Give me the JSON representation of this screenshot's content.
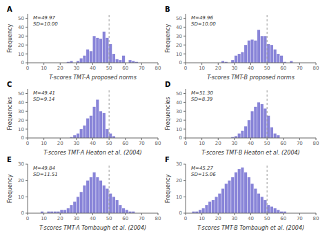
{
  "chart_data": [
    {
      "type": "bar",
      "title": "A",
      "xlabel": "T-scores TMT-A proposed norms",
      "ylabel": "Frequency",
      "annotation": "M=49.97\nSD=10.00",
      "reference_line_x": 50,
      "x": [
        23,
        25,
        27,
        29,
        31,
        33,
        35,
        37,
        39,
        41,
        43,
        45,
        47,
        49,
        51,
        53,
        55,
        57,
        59,
        61,
        63,
        65,
        67,
        69,
        71,
        73
      ],
      "values": [
        0,
        1,
        2,
        0,
        2,
        5,
        8,
        15,
        13,
        30,
        28,
        27,
        35,
        28,
        21,
        10,
        4,
        3,
        8,
        0,
        3,
        2,
        1,
        0,
        0,
        0
      ],
      "xlim": [
        0,
        80
      ],
      "xticks": [
        0,
        10,
        20,
        30,
        40,
        50,
        60,
        70,
        80
      ],
      "ylim": [
        0,
        55
      ],
      "yticks": [
        0,
        10,
        20,
        30,
        40,
        50
      ],
      "grid": false
    },
    {
      "type": "bar",
      "title": "B",
      "xlabel": "T-scores TMT-B proposed norms",
      "ylabel": "Frequency",
      "annotation": "M=49.96\nSD=10.00",
      "reference_line_x": 50,
      "x": [
        23,
        25,
        27,
        29,
        31,
        33,
        35,
        37,
        39,
        41,
        43,
        45,
        47,
        49,
        51,
        53,
        55,
        57,
        59,
        61,
        63,
        65,
        67,
        69,
        71,
        73,
        75
      ],
      "values": [
        2,
        1,
        0,
        3,
        8,
        10,
        12,
        20,
        25,
        26,
        25,
        37,
        30,
        30,
        21,
        20,
        15,
        10,
        8,
        1,
        0,
        2,
        0,
        0,
        0,
        0,
        0
      ],
      "xlim": [
        0,
        80
      ],
      "xticks": [
        0,
        10,
        20,
        30,
        40,
        50,
        60,
        70,
        80
      ],
      "ylim": [
        0,
        55
      ],
      "yticks": [
        0,
        10,
        20,
        30,
        40,
        50
      ],
      "grid": false
    },
    {
      "type": "bar",
      "title": "C",
      "xlabel": "T-scores TMT-A Heaton et al. (2004)",
      "ylabel": "Frequencies",
      "annotation": "M=49.41\nSD=9.14",
      "reference_line_x": 50,
      "x": [
        27,
        29,
        31,
        33,
        35,
        37,
        39,
        41,
        43,
        45,
        47,
        49,
        51,
        53,
        55,
        57,
        59,
        61,
        63
      ],
      "values": [
        1,
        3,
        5,
        10,
        14,
        22,
        25,
        35,
        43,
        30,
        28,
        10,
        5,
        2,
        0,
        0,
        0,
        0,
        0
      ],
      "xlim": [
        0,
        80
      ],
      "xticks": [
        0,
        10,
        20,
        30,
        40,
        50,
        60,
        70,
        80
      ],
      "ylim": [
        0,
        55
      ],
      "yticks": [
        0,
        10,
        20,
        30,
        40,
        50
      ],
      "grid": false
    },
    {
      "type": "bar",
      "title": "D",
      "xlabel": "T-scores TMT-B Heaton et al. (2004)",
      "ylabel": "Frequencies",
      "annotation": "M=51.30\nSD=8.39",
      "reference_line_x": 50,
      "x": [
        29,
        31,
        33,
        35,
        37,
        39,
        41,
        43,
        45,
        47,
        49,
        51,
        53,
        55,
        57,
        59,
        61,
        63
      ],
      "values": [
        1,
        2,
        5,
        8,
        13,
        20,
        30,
        35,
        40,
        38,
        33,
        25,
        12,
        5,
        3,
        0,
        0,
        0
      ],
      "xlim": [
        0,
        80
      ],
      "xticks": [
        0,
        10,
        20,
        30,
        40,
        50,
        60,
        70,
        80
      ],
      "ylim": [
        0,
        55
      ],
      "yticks": [
        0,
        10,
        20,
        30,
        40,
        50
      ],
      "grid": false
    },
    {
      "type": "bar",
      "title": "E",
      "xlabel": "T-scores TMT-A Tombaugh et al. (2004)",
      "ylabel": "Frequency",
      "annotation": "M=49.84\nSD=11.51",
      "reference_line_x": 50,
      "x": [
        3,
        5,
        7,
        9,
        11,
        13,
        15,
        17,
        19,
        21,
        23,
        25,
        27,
        29,
        31,
        33,
        35,
        37,
        39,
        41,
        43,
        45,
        47,
        49,
        51,
        53,
        55,
        57,
        59,
        61,
        63,
        65,
        67,
        69,
        71,
        73,
        75,
        77
      ],
      "values": [
        0,
        0,
        0,
        1,
        0,
        1,
        1,
        1,
        1,
        2,
        2,
        3,
        5,
        7,
        10,
        13,
        17,
        20,
        22,
        25,
        22,
        20,
        17,
        15,
        12,
        10,
        8,
        5,
        3,
        2,
        1,
        1,
        0,
        0,
        0,
        0,
        0,
        0
      ],
      "xlim": [
        0,
        80
      ],
      "xticks": [
        0,
        10,
        20,
        30,
        40,
        50,
        60,
        70,
        80
      ],
      "ylim": [
        0,
        30
      ],
      "yticks": [
        0,
        10,
        20,
        30
      ],
      "grid": false
    },
    {
      "type": "bar",
      "title": "F",
      "xlabel": "T-scores TMT-B Tombaugh et al. (2004)",
      "ylabel": "Frequency",
      "annotation": "M=45.27\nSD=15.06",
      "reference_line_x": 50,
      "x": [
        3,
        5,
        7,
        9,
        11,
        13,
        15,
        17,
        19,
        21,
        23,
        25,
        27,
        29,
        31,
        33,
        35,
        37,
        39,
        41,
        43,
        45,
        47,
        49,
        51,
        53,
        55,
        57,
        59,
        61,
        63,
        65,
        67,
        69,
        71,
        73,
        75,
        77
      ],
      "values": [
        0,
        1,
        1,
        2,
        3,
        5,
        7,
        8,
        10,
        12,
        15,
        18,
        20,
        22,
        25,
        27,
        28,
        25,
        22,
        18,
        15,
        12,
        10,
        8,
        5,
        4,
        3,
        2,
        1,
        1,
        0,
        0,
        0,
        0,
        0,
        0,
        0,
        0
      ],
      "xlim": [
        0,
        80
      ],
      "xticks": [
        0,
        10,
        20,
        30,
        40,
        50,
        60,
        70,
        80
      ],
      "ylim": [
        0,
        30
      ],
      "yticks": [
        0,
        10,
        20,
        30
      ],
      "grid": false
    }
  ]
}
